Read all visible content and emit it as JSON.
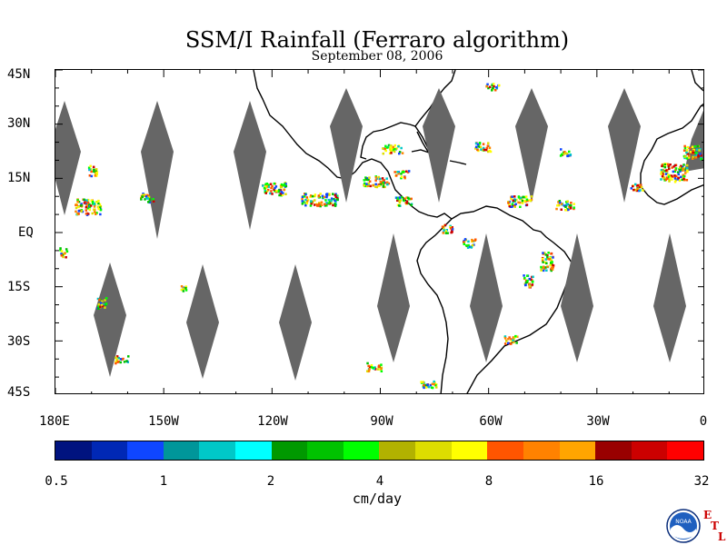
{
  "title": "SSM/I Rainfall (Ferraro algorithm)",
  "date": "September 08, 2006",
  "map": {
    "lat_labels": [
      "45N",
      "30N",
      "15N",
      "EQ",
      "15S",
      "30S",
      "45S"
    ],
    "lon_labels": [
      "180E",
      "150W",
      "120W",
      "90W",
      "60W",
      "30W",
      "0"
    ],
    "colors": {
      "no_data_swath": "#666666",
      "land_outline": "#000000",
      "background": "#ffffff"
    }
  },
  "colorbar": {
    "colors": [
      "#00137f",
      "#0028b5",
      "#0f46ff",
      "#00969a",
      "#00c8c8",
      "#00ffff",
      "#009900",
      "#00c300",
      "#00ff00",
      "#b2b200",
      "#dddd00",
      "#ffff00",
      "#ff5500",
      "#ff8200",
      "#ffa500",
      "#990000",
      "#cc0000",
      "#ff0000"
    ],
    "tick_labels": [
      "0.5",
      "1",
      "2",
      "4",
      "8",
      "16",
      "32"
    ],
    "unit": "cm/day"
  },
  "logo": {
    "text": "NOAA",
    "letters": [
      "E",
      "T",
      "L"
    ]
  }
}
